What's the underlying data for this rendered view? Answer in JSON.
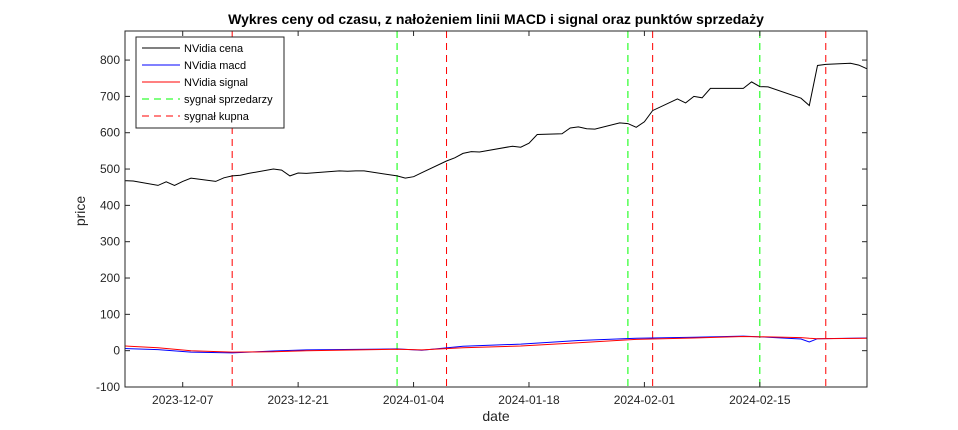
{
  "chart_data": {
    "type": "line",
    "title": "Wykres ceny od czasu, z nałożeniem linii MACD i signal oraz punktów sprzedaży",
    "xlabel": "date",
    "ylabel": "price",
    "xlim": [
      "2023-11-30",
      "2024-02-28"
    ],
    "ylim": [
      -100,
      880
    ],
    "x_ticks": [
      "2023-12-07",
      "2023-12-21",
      "2024-01-04",
      "2024-01-18",
      "2024-02-01",
      "2024-02-15"
    ],
    "y_ticks": [
      -100,
      0,
      100,
      200,
      300,
      400,
      500,
      600,
      700,
      800
    ],
    "grid": false,
    "legend_position": "top-left",
    "series": [
      {
        "name": "NVidia cena",
        "color": "#000000",
        "x": [
          "2023-11-30",
          "2023-12-01",
          "2023-12-04",
          "2023-12-05",
          "2023-12-06",
          "2023-12-07",
          "2023-12-08",
          "2023-12-11",
          "2023-12-12",
          "2023-12-13",
          "2023-12-14",
          "2023-12-15",
          "2023-12-18",
          "2023-12-19",
          "2023-12-20",
          "2023-12-21",
          "2023-12-22",
          "2023-12-26",
          "2023-12-27",
          "2023-12-28",
          "2023-12-29",
          "2024-01-02",
          "2024-01-03",
          "2024-01-04",
          "2024-01-05",
          "2024-01-08",
          "2024-01-09",
          "2024-01-10",
          "2024-01-11",
          "2024-01-12",
          "2024-01-16",
          "2024-01-17",
          "2024-01-18",
          "2024-01-19",
          "2024-01-22",
          "2024-01-23",
          "2024-01-24",
          "2024-01-25",
          "2024-01-26",
          "2024-01-29",
          "2024-01-30",
          "2024-01-31",
          "2024-02-01",
          "2024-02-02",
          "2024-02-05",
          "2024-02-06",
          "2024-02-07",
          "2024-02-08",
          "2024-02-09",
          "2024-02-12",
          "2024-02-13",
          "2024-02-14",
          "2024-02-15",
          "2024-02-16",
          "2024-02-20",
          "2024-02-21",
          "2024-02-22",
          "2024-02-23",
          "2024-02-26",
          "2024-02-27",
          "2024-02-28"
        ],
        "values": [
          468,
          467,
          455,
          465,
          455,
          466,
          475,
          466,
          476,
          481,
          483,
          488,
          500,
          497,
          481,
          489,
          488,
          495,
          494,
          495,
          495,
          481,
          475,
          479,
          490,
          522,
          531,
          543,
          548,
          547,
          563,
          560,
          571,
          595,
          597,
          613,
          616,
          611,
          610,
          627,
          625,
          615,
          630,
          661,
          693,
          682,
          700,
          696,
          722,
          722,
          722,
          740,
          727,
          726,
          695,
          675,
          785,
          788,
          791,
          786,
          776
        ]
      },
      {
        "name": "NVidia macd",
        "color": "#0000ff",
        "x": [
          "2023-11-30",
          "2023-12-04",
          "2023-12-08",
          "2023-12-13",
          "2023-12-18",
          "2023-12-22",
          "2024-01-02",
          "2024-01-05",
          "2024-01-10",
          "2024-01-17",
          "2024-01-24",
          "2024-01-31",
          "2024-02-07",
          "2024-02-13",
          "2024-02-16",
          "2024-02-20",
          "2024-02-21",
          "2024-02-22",
          "2024-02-28"
        ],
        "values": [
          6,
          3,
          -4,
          -6,
          -1,
          2,
          5,
          1,
          12,
          18,
          28,
          34,
          37,
          40,
          37,
          32,
          24,
          33,
          35
        ]
      },
      {
        "name": "NVidia signal",
        "color": "#ff0000",
        "x": [
          "2023-11-30",
          "2023-12-04",
          "2023-12-08",
          "2023-12-13",
          "2023-12-18",
          "2023-12-22",
          "2024-01-02",
          "2024-01-05",
          "2024-01-10",
          "2024-01-17",
          "2024-01-24",
          "2024-01-31",
          "2024-02-07",
          "2024-02-13",
          "2024-02-16",
          "2024-02-20",
          "2024-02-21",
          "2024-02-22",
          "2024-02-28"
        ],
        "values": [
          13,
          8,
          0,
          -4,
          -3,
          0,
          4,
          2,
          8,
          13,
          22,
          31,
          35,
          39,
          38,
          36,
          34,
          33,
          34
        ]
      }
    ],
    "signals": [
      {
        "name": "sygnał sprzedarzy",
        "color": "#00ff00",
        "dates": [
          "2024-01-02",
          "2024-01-30",
          "2024-02-15"
        ]
      },
      {
        "name": "sygnał kupna",
        "color": "#ff0000",
        "dates": [
          "2023-12-13",
          "2024-01-08",
          "2024-02-02",
          "2024-02-23"
        ]
      }
    ]
  }
}
